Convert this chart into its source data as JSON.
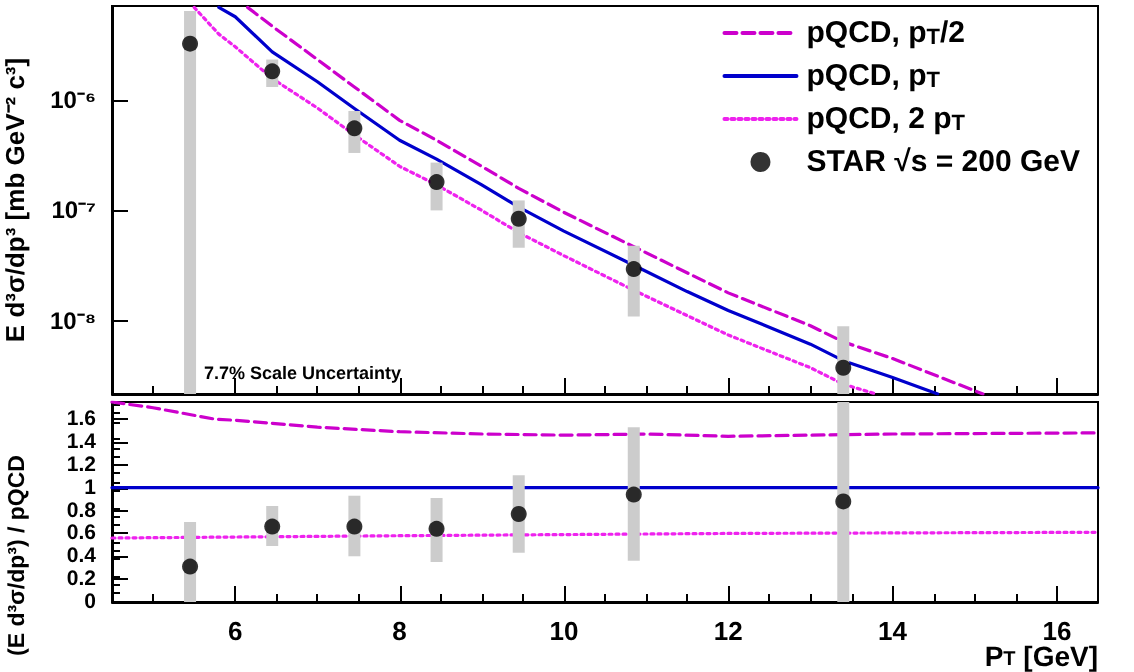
{
  "chart_data": [
    {
      "type": "line",
      "ylabel": "E d³σ/dp³ [mb GeV⁻² c³]",
      "log": true,
      "grid": false,
      "legend": "top right",
      "tick_labels": "y",
      "xlim": [
        4.5,
        16.5
      ],
      "xticks": [
        6,
        8,
        10,
        12,
        14,
        16
      ],
      "ylim": [
        2.2e-09,
        7e-06
      ],
      "yticks": [
        {
          "value": 1e-08,
          "label": "10⁻⁸"
        },
        {
          "value": 1e-07,
          "label": "10⁻⁷"
        },
        {
          "value": 1e-06,
          "label": "10⁻⁶"
        }
      ],
      "annotations": [
        "7.7% Scale Uncertainty"
      ],
      "series": [
        {
          "name": "pQCD, p$_{T}$/2",
          "type": "line",
          "color": "#cc00cc",
          "line_style": "dashed",
          "marker": "none",
          "x": [
            6.15,
            6.45,
            7,
            7.45,
            8,
            8.45,
            9,
            9.45,
            10,
            10.85,
            12,
            13,
            13.4,
            14,
            15.1
          ],
          "values": [
            6.8e-06,
            4.6e-06,
            2.3e-06,
            1.3e-06,
            6.5e-07,
            4.3e-07,
            2.5e-07,
            1.58e-07,
            9.6e-08,
            4.7e-08,
            1.8e-08,
            9.1e-09,
            6.5e-09,
            4.6e-09,
            2.2e-09
          ]
        },
        {
          "name": "pQCD, p$_{T}$",
          "type": "line",
          "color": "#0000cc",
          "line_style": "solid",
          "marker": "none",
          "x": [
            5.8,
            6,
            6.45,
            7,
            7.45,
            8,
            8.45,
            9,
            9.45,
            10,
            10.85,
            11.5,
            12,
            13,
            13.4,
            14,
            14.55
          ],
          "values": [
            6.8e-06,
            5.6e-06,
            2.7e-06,
            1.45e-06,
            8.3e-07,
            4.3e-07,
            2.9e-07,
            1.7e-07,
            1.07e-07,
            6.5e-08,
            3.2e-08,
            1.85e-08,
            1.25e-08,
            6.2e-09,
            4.4e-09,
            3.1e-09,
            2.2e-09
          ]
        },
        {
          "name": "pQCD, 2 p$_{T}$",
          "type": "line",
          "color": "#ee22ee",
          "line_style": "dotted",
          "marker": "none",
          "x": [
            5.5,
            5.8,
            6,
            6.45,
            7,
            7.45,
            8,
            8.45,
            9,
            9.45,
            10,
            10.85,
            12,
            13,
            13.4,
            13.8
          ],
          "values": [
            6.8e-06,
            3.9e-06,
            3e-06,
            1.55e-06,
            8.4e-07,
            4.8e-07,
            2.5e-07,
            1.7e-07,
            1e-07,
            6.3e-08,
            3.9e-08,
            1.9e-08,
            7.5e-09,
            3.8e-09,
            2.7e-09,
            2.2e-09
          ]
        },
        {
          "name": "STAR √s = 200 GeV",
          "type": "scatter",
          "color": "#000000",
          "marker": "circle",
          "x": [
            5.45,
            6.45,
            7.45,
            8.45,
            9.45,
            10.85,
            13.4
          ],
          "values": [
            3.2e-06,
            1.8e-06,
            5.5e-07,
            1.8e-07,
            8.4e-08,
            2.95e-08,
            3.8e-09
          ],
          "errors": [
            [
              2.2e-09,
              6.3e-06
            ],
            [
              1.3e-06,
              2.3e-06
            ],
            [
              3.3e-07,
              7.9e-07
            ],
            [
              1e-07,
              2.7e-07
            ],
            [
              4.6e-08,
              1.23e-07
            ],
            [
              1.1e-08,
              4.8e-08
            ],
            [
              2.2e-09,
              9e-09
            ]
          ]
        }
      ]
    },
    {
      "type": "line",
      "xlabel": "P$_{T}$ [GeV]",
      "ylabel": "(E d³σ/dp³) / pQCD",
      "grid": false,
      "xlim": [
        4.5,
        16.5
      ],
      "xticks": [
        6,
        8,
        10,
        12,
        14,
        16
      ],
      "ylim": [
        0,
        1.75
      ],
      "yticks": [
        0,
        0.2,
        0.4,
        0.6,
        0.8,
        1,
        1.2,
        1.4,
        1.6
      ],
      "series": [
        {
          "type": "line",
          "color": "#cc00cc",
          "line_style": "dashed",
          "marker": "none",
          "x": [
            4.5,
            5,
            5.75,
            6,
            7,
            8,
            9,
            10,
            11,
            12,
            14,
            16.5
          ],
          "values": [
            1.75,
            1.7,
            1.6,
            1.59,
            1.53,
            1.49,
            1.47,
            1.46,
            1.47,
            1.45,
            1.47,
            1.48
          ]
        },
        {
          "type": "line",
          "color": "#0000cc",
          "line_style": "solid",
          "marker": "none",
          "x": [
            4.5,
            16.5
          ],
          "values": [
            1,
            1
          ]
        },
        {
          "type": "line",
          "color": "#ee22ee",
          "line_style": "dotted",
          "marker": "none",
          "x": [
            4.5,
            8,
            12,
            16.5
          ],
          "values": [
            0.56,
            0.58,
            0.6,
            0.61
          ]
        },
        {
          "type": "scatter",
          "color": "#000000",
          "marker": "circle",
          "x": [
            5.45,
            6.45,
            7.45,
            8.45,
            9.45,
            10.85,
            13.4
          ],
          "values": [
            0.31,
            0.66,
            0.66,
            0.64,
            0.77,
            0.94,
            0.88
          ],
          "errors": [
            [
              0,
              0.7
            ],
            [
              0.49,
              0.84
            ],
            [
              0.4,
              0.93
            ],
            [
              0.35,
              0.91
            ],
            [
              0.43,
              1.11
            ],
            [
              0.36,
              1.53
            ],
            [
              0,
              1.75
            ]
          ]
        }
      ]
    }
  ]
}
